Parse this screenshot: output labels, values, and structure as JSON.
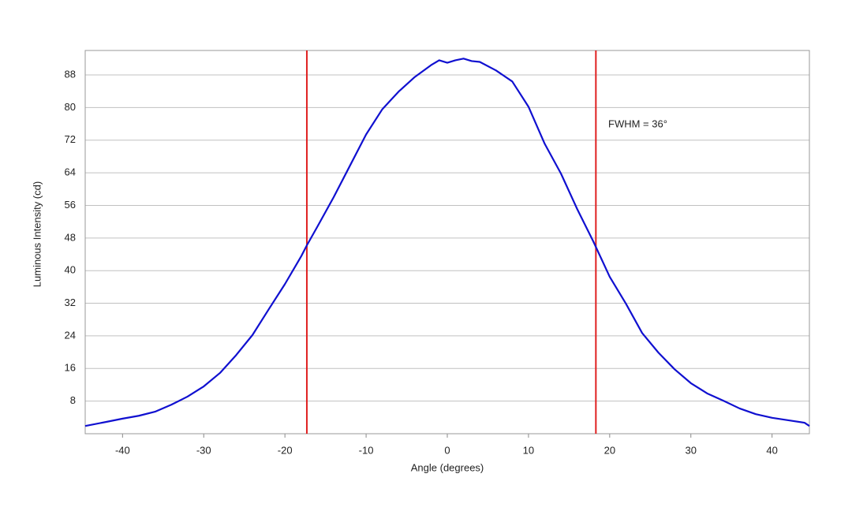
{
  "chart_data": {
    "type": "line",
    "annotation": "FWHM = 36°",
    "x_label": "Angle (degrees)",
    "y_label": "Luminous Intensity (cd)",
    "x": [
      -44.6,
      -42,
      -40,
      -38,
      -36,
      -34,
      -32,
      -30,
      -28,
      -26,
      -24,
      -22,
      -20,
      -18,
      -17.3,
      -16,
      -14,
      -12,
      -10,
      -8,
      -6,
      -4,
      -2,
      -1,
      0,
      1,
      2,
      3,
      4,
      6,
      8,
      10,
      12,
      14,
      16,
      18,
      20,
      22,
      24,
      26,
      28,
      30,
      32,
      34,
      36,
      38,
      40,
      42,
      44,
      44.6
    ],
    "series": [
      {
        "color": "#1010d0",
        "values": [
          1.9,
          2.9,
          3.7,
          4.4,
          5.4,
          7.1,
          9.1,
          11.6,
          14.9,
          19.3,
          24.2,
          30.5,
          36.7,
          43.5,
          46.2,
          50.8,
          58,
          65.7,
          73.4,
          79.6,
          83.9,
          87.5,
          90.4,
          91.6,
          91,
          91.6,
          92,
          91.4,
          91.2,
          89.1,
          86.4,
          80.2,
          71.1,
          63.8,
          55.1,
          47.1,
          38.5,
          31.9,
          24.7,
          19.9,
          15.8,
          12.4,
          9.9,
          8.1,
          6.2,
          4.8,
          3.9,
          3.3,
          2.7,
          1.9
        ]
      }
    ],
    "vlines": [
      -17.3,
      18.3
    ],
    "vline_color": "#e02020",
    "xlim": [
      -44.6,
      44.6
    ],
    "xticks": [
      -40,
      -30,
      -20,
      -10,
      0,
      10,
      20,
      30,
      40
    ],
    "ylim": [
      0,
      94
    ],
    "yticks": [
      8,
      16,
      24,
      32,
      40,
      48,
      56,
      64,
      72,
      80,
      88
    ],
    "grid": true
  }
}
